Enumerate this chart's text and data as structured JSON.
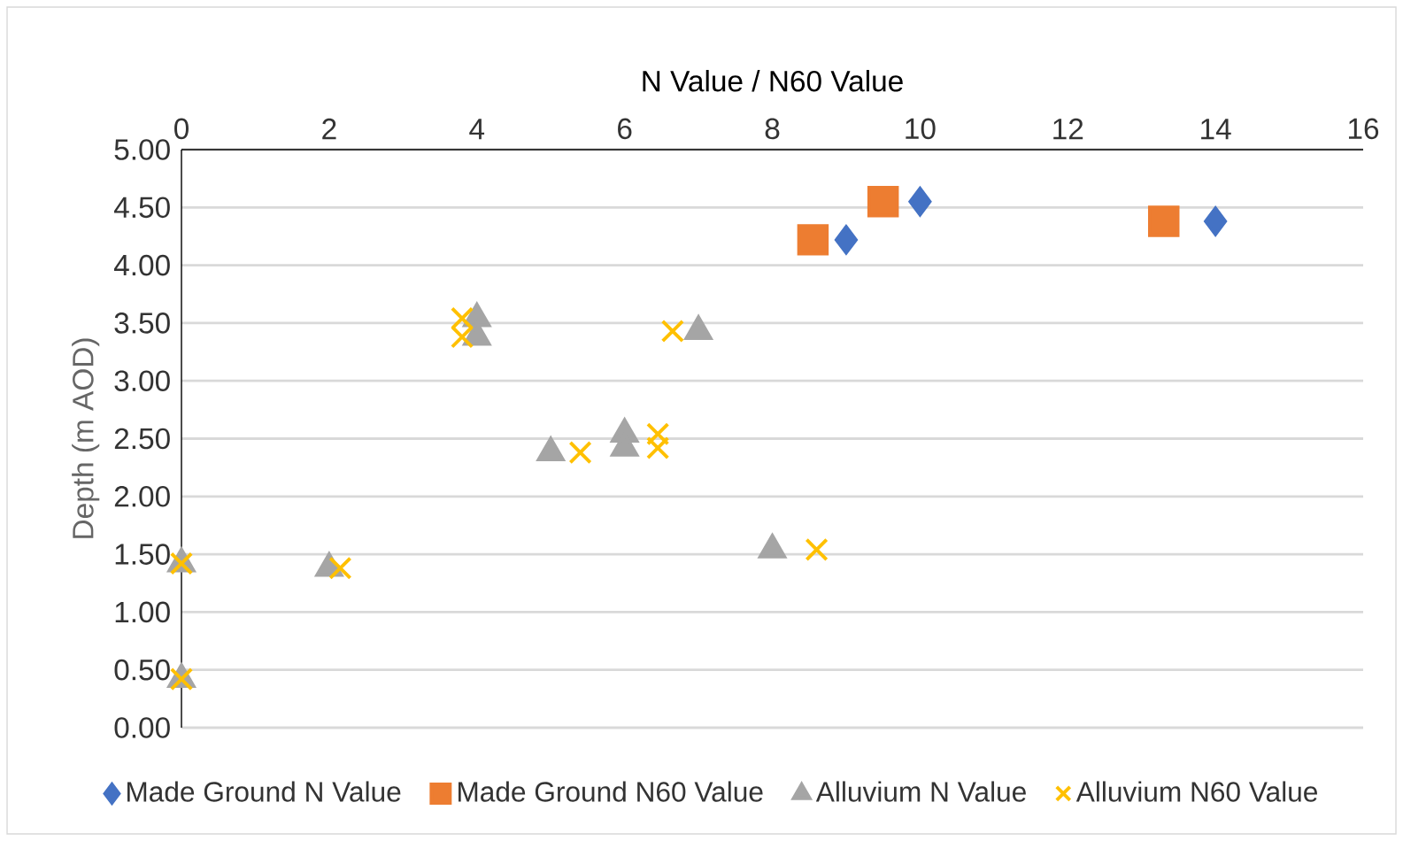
{
  "chart_data": {
    "type": "scatter",
    "xlabel": "N Value / N60 Value",
    "ylabel": "Depth (m AOD)",
    "xlim": [
      0,
      16
    ],
    "xticks": [
      0,
      2,
      4,
      6,
      8,
      10,
      12,
      14,
      16
    ],
    "ylim": [
      0,
      5
    ],
    "yticks": [
      {
        "value": 0,
        "label": "0.00"
      },
      {
        "value": 0.5,
        "label": "0.50"
      },
      {
        "value": 1,
        "label": "1.00"
      },
      {
        "value": 1.5,
        "label": "1.50"
      },
      {
        "value": 2,
        "label": "2.00"
      },
      {
        "value": 2.5,
        "label": "2.50"
      },
      {
        "value": 3,
        "label": "3.00"
      },
      {
        "value": 3.5,
        "label": "3.50"
      },
      {
        "value": 4,
        "label": "4.00"
      },
      {
        "value": 4.5,
        "label": "4.50"
      },
      {
        "value": 5,
        "label": "5.00"
      }
    ],
    "grid": "y",
    "legend": "bottom",
    "series": [
      {
        "name": "Made Ground N Value",
        "color": "#4472c4",
        "marker": "diamond",
        "x": [
          10,
          9,
          14
        ],
        "values": [
          4.55,
          4.22,
          4.38
        ]
      },
      {
        "name": "Made Ground N60 Value",
        "color": "#ed7d31",
        "marker": "square",
        "x": [
          9.5,
          8.55,
          13.3
        ],
        "values": [
          4.55,
          4.22,
          4.38
        ]
      },
      {
        "name": "Alluvium N Value",
        "color": "#a5a5a5",
        "marker": "triangle",
        "x": [
          4,
          4,
          7,
          5,
          6,
          6,
          8,
          2,
          0,
          0
        ],
        "values": [
          3.54,
          3.38,
          3.43,
          2.38,
          2.54,
          2.42,
          1.54,
          1.38,
          1.42,
          0.42
        ]
      },
      {
        "name": "Alluvium N60 Value",
        "color": "#ffc000",
        "marker": "cross",
        "x": [
          3.8,
          3.8,
          6.65,
          5.4,
          6.45,
          6.45,
          8.6,
          2.15,
          0,
          0
        ],
        "values": [
          3.54,
          3.38,
          3.43,
          2.38,
          2.54,
          2.42,
          1.54,
          1.38,
          1.42,
          0.42
        ]
      }
    ]
  }
}
